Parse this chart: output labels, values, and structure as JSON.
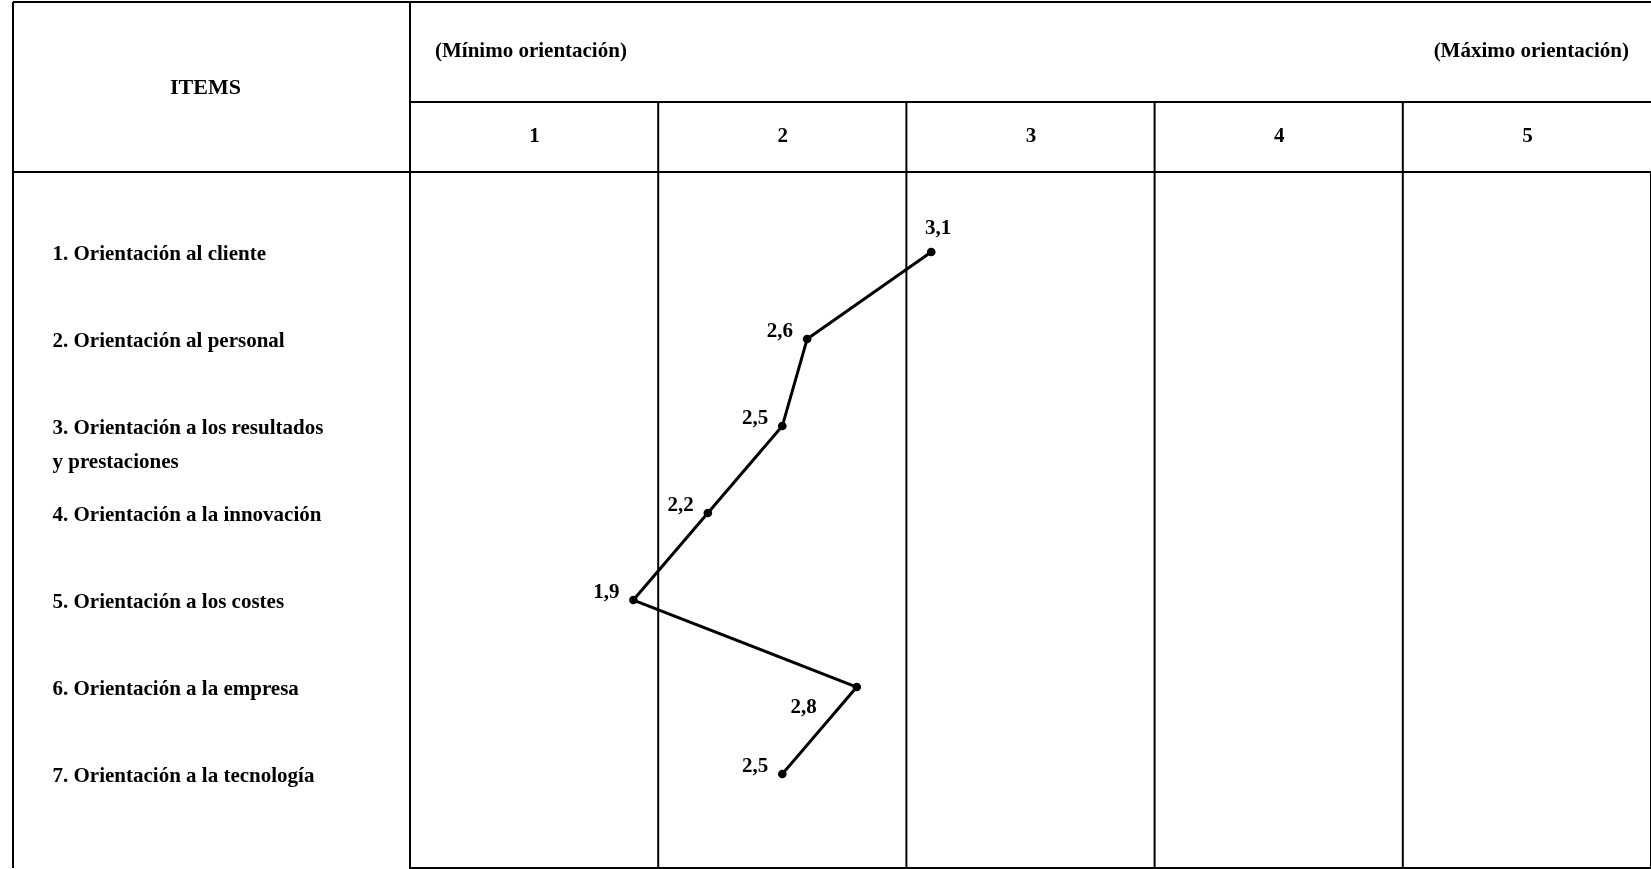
{
  "chart_data": {
    "type": "line",
    "orientation": "horizontal",
    "ylabel": "ITEMS",
    "categories": [
      "1. Orientación al cliente",
      "2. Orientación al personal",
      "3. Orientación a los resultados y prestaciones",
      "4. Orientación a la innovación",
      "5. Orientación a los costes",
      "6. Orientación a la empresa",
      "7. Orientación a la tecnología"
    ],
    "series": [
      {
        "color": "#000000",
        "values": [
          3.1,
          2.6,
          2.5,
          2.2,
          1.9,
          2.8,
          2.5
        ],
        "value_labels": [
          "3,1",
          "2,6",
          "2,5",
          "2,2",
          "1,9",
          "2,8",
          "2,5"
        ]
      }
    ],
    "marker": "circle",
    "line_style": "solid",
    "xlim": [
      1,
      6
    ],
    "xticks": [
      {
        "value": 1.5,
        "label": "1"
      },
      {
        "value": 2.5,
        "label": "2"
      },
      {
        "value": 3.5,
        "label": "3"
      },
      {
        "value": 4.5,
        "label": "4"
      },
      {
        "value": 5.5,
        "label": "5"
      }
    ],
    "ref_lines": [
      {
        "axis": "x",
        "value": 2,
        "color": "#000000"
      },
      {
        "axis": "x",
        "value": 3,
        "color": "#000000"
      },
      {
        "axis": "x",
        "value": 4,
        "color": "#000000"
      },
      {
        "axis": "x",
        "value": 5,
        "color": "#000000"
      }
    ],
    "annotations": [
      "(Mínimo orientación)",
      "(Máximo orientación)"
    ]
  }
}
